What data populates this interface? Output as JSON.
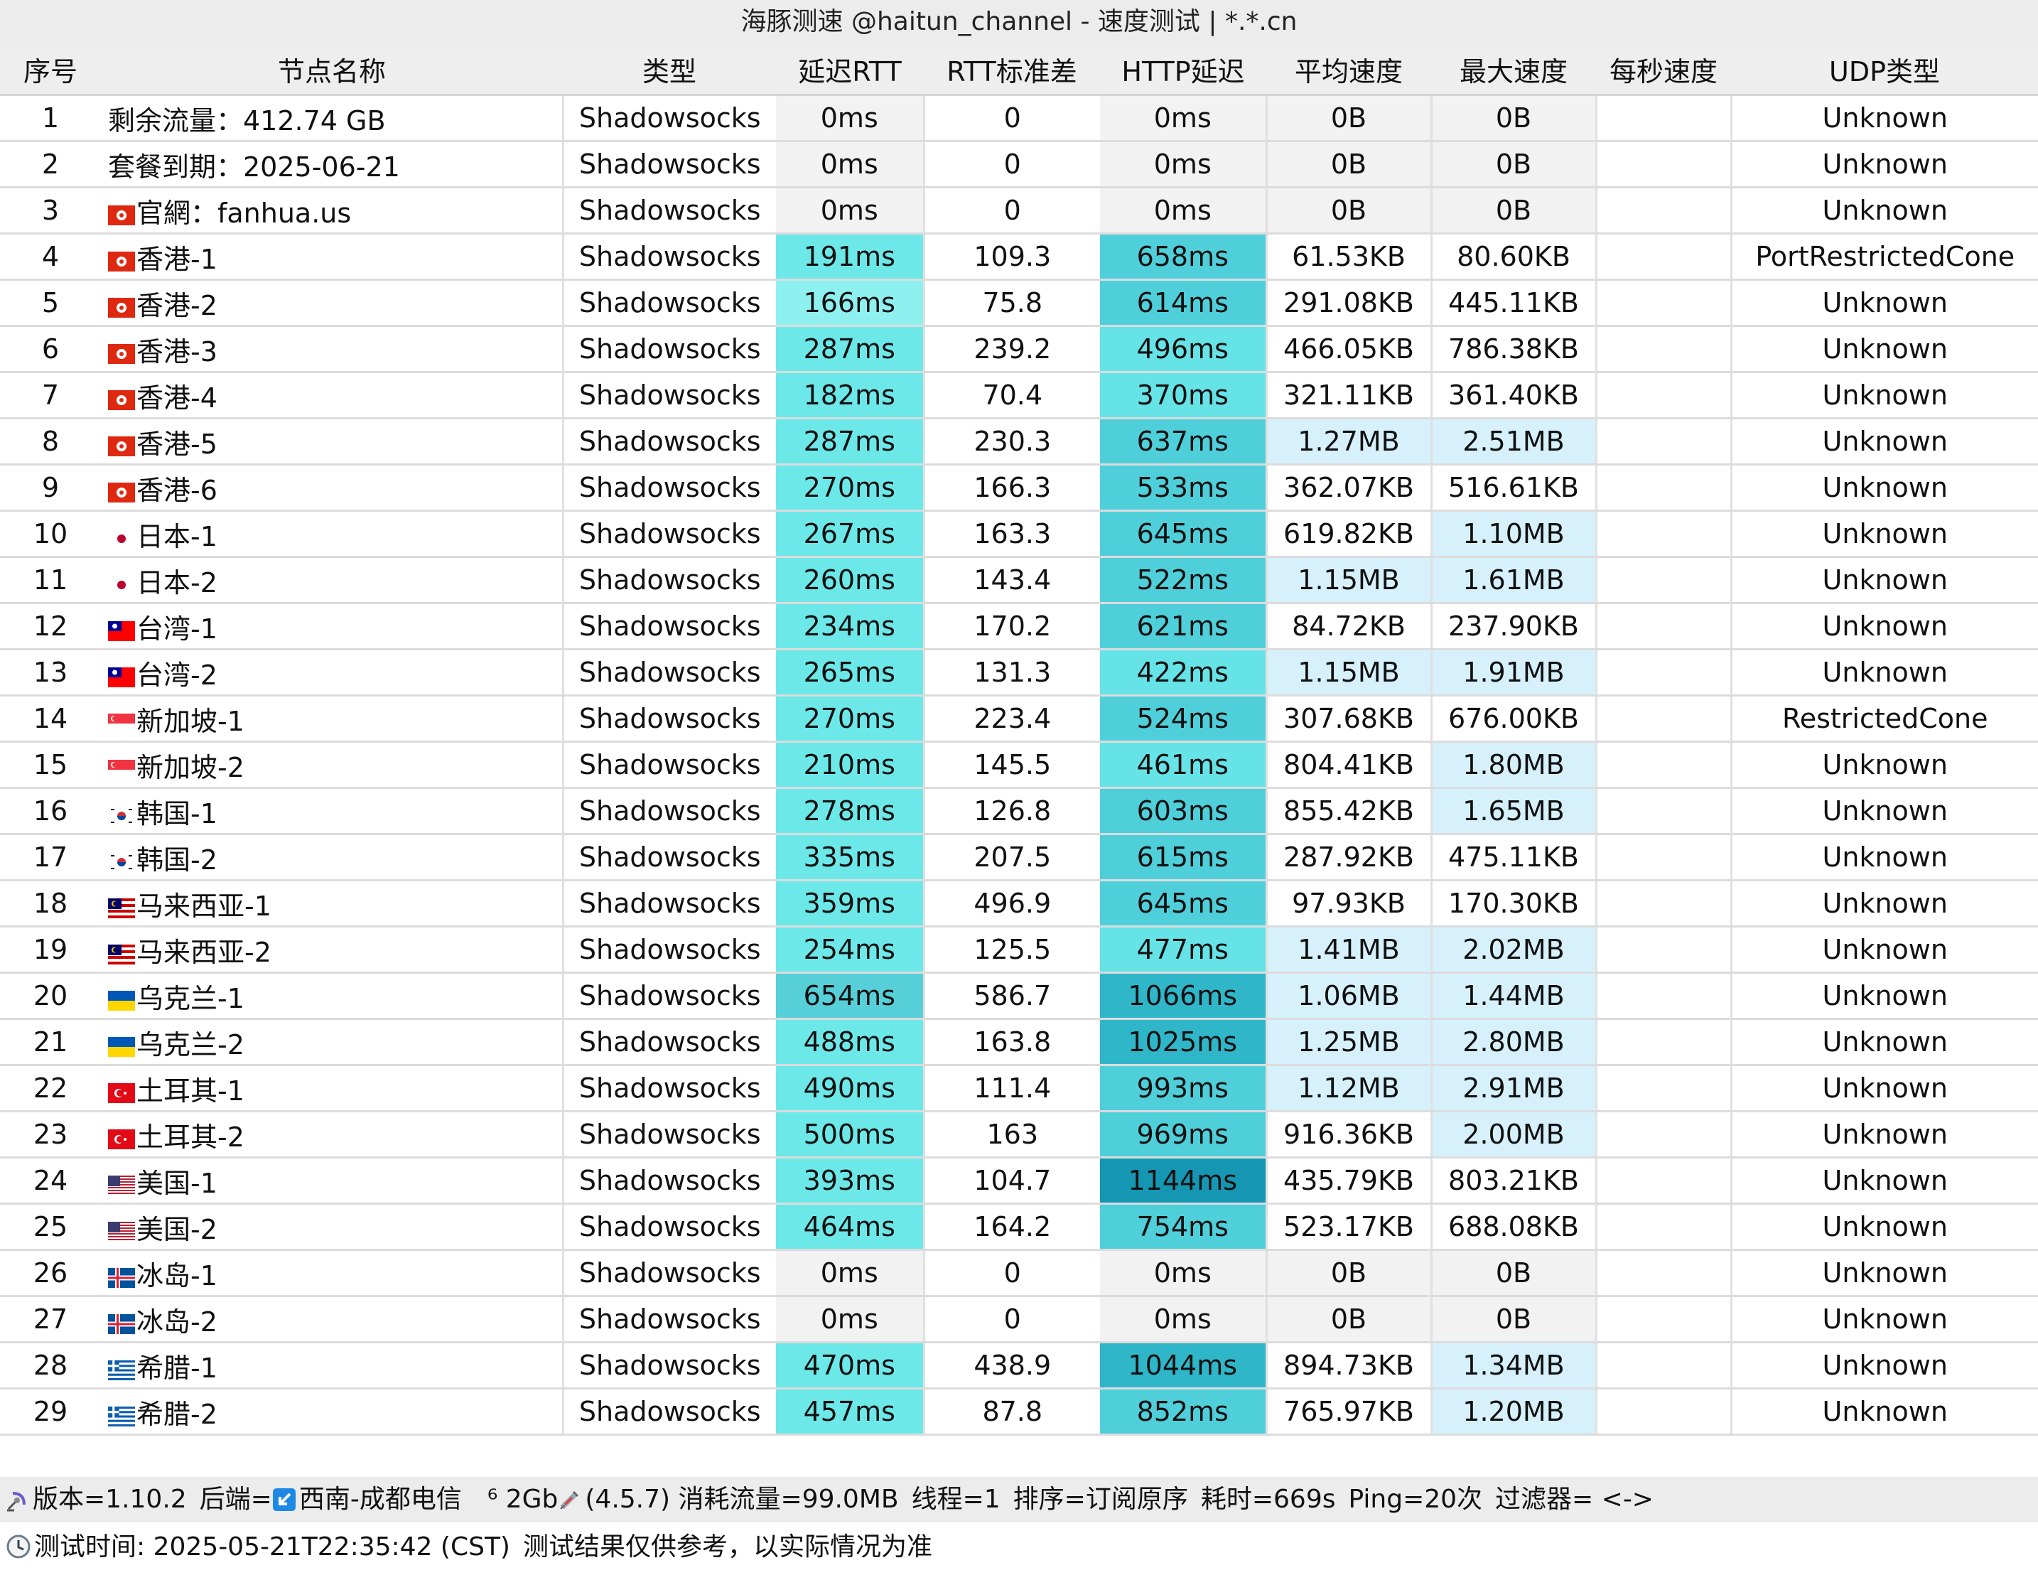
{
  "title": "海豚测速 @haitun_channel - 速度测试 | *.*.cn",
  "headers": [
    "序号",
    "节点名称",
    "类型",
    "延迟RTT",
    "RTT标准差",
    "HTTP延迟",
    "平均速度",
    "最大速度",
    "每秒速度",
    "UDP类型"
  ],
  "rows": [
    {
      "idx": "1",
      "flag": "",
      "name": "剩余流量：412.74 GB",
      "type": "Shadowsocks",
      "rtt": "0ms",
      "std": "0",
      "http": "0ms",
      "avg": "0B",
      "max": "0B",
      "per": "",
      "udp": "Unknown"
    },
    {
      "idx": "2",
      "flag": "",
      "name": "套餐到期：2025-06-21",
      "type": "Shadowsocks",
      "rtt": "0ms",
      "std": "0",
      "http": "0ms",
      "avg": "0B",
      "max": "0B",
      "per": "",
      "udp": "Unknown"
    },
    {
      "idx": "3",
      "flag": "hk",
      "name": "官網：fanhua.us",
      "type": "Shadowsocks",
      "rtt": "0ms",
      "std": "0",
      "http": "0ms",
      "avg": "0B",
      "max": "0B",
      "per": "",
      "udp": "Unknown"
    },
    {
      "idx": "4",
      "flag": "hk",
      "name": "香港-1",
      "type": "Shadowsocks",
      "rtt": "191ms",
      "std": "109.3",
      "http": "658ms",
      "avg": "61.53KB",
      "max": "80.60KB",
      "per": "",
      "udp": "PortRestrictedCone"
    },
    {
      "idx": "5",
      "flag": "hk",
      "name": "香港-2",
      "type": "Shadowsocks",
      "rtt": "166ms",
      "std": "75.8",
      "http": "614ms",
      "avg": "291.08KB",
      "max": "445.11KB",
      "per": "",
      "udp": "Unknown"
    },
    {
      "idx": "6",
      "flag": "hk",
      "name": "香港-3",
      "type": "Shadowsocks",
      "rtt": "287ms",
      "std": "239.2",
      "http": "496ms",
      "avg": "466.05KB",
      "max": "786.38KB",
      "per": "",
      "udp": "Unknown"
    },
    {
      "idx": "7",
      "flag": "hk",
      "name": "香港-4",
      "type": "Shadowsocks",
      "rtt": "182ms",
      "std": "70.4",
      "http": "370ms",
      "avg": "321.11KB",
      "max": "361.40KB",
      "per": "",
      "udp": "Unknown"
    },
    {
      "idx": "8",
      "flag": "hk",
      "name": "香港-5",
      "type": "Shadowsocks",
      "rtt": "287ms",
      "std": "230.3",
      "http": "637ms",
      "avg": "1.27MB",
      "max": "2.51MB",
      "per": "",
      "udp": "Unknown"
    },
    {
      "idx": "9",
      "flag": "hk",
      "name": "香港-6",
      "type": "Shadowsocks",
      "rtt": "270ms",
      "std": "166.3",
      "http": "533ms",
      "avg": "362.07KB",
      "max": "516.61KB",
      "per": "",
      "udp": "Unknown"
    },
    {
      "idx": "10",
      "flag": "jp",
      "name": "日本-1",
      "type": "Shadowsocks",
      "rtt": "267ms",
      "std": "163.3",
      "http": "645ms",
      "avg": "619.82KB",
      "max": "1.10MB",
      "per": "",
      "udp": "Unknown"
    },
    {
      "idx": "11",
      "flag": "jp",
      "name": "日本-2",
      "type": "Shadowsocks",
      "rtt": "260ms",
      "std": "143.4",
      "http": "522ms",
      "avg": "1.15MB",
      "max": "1.61MB",
      "per": "",
      "udp": "Unknown"
    },
    {
      "idx": "12",
      "flag": "tw",
      "name": "台湾-1",
      "type": "Shadowsocks",
      "rtt": "234ms",
      "std": "170.2",
      "http": "621ms",
      "avg": "84.72KB",
      "max": "237.90KB",
      "per": "",
      "udp": "Unknown"
    },
    {
      "idx": "13",
      "flag": "tw",
      "name": "台湾-2",
      "type": "Shadowsocks",
      "rtt": "265ms",
      "std": "131.3",
      "http": "422ms",
      "avg": "1.15MB",
      "max": "1.91MB",
      "per": "",
      "udp": "Unknown"
    },
    {
      "idx": "14",
      "flag": "sg",
      "name": "新加坡-1",
      "type": "Shadowsocks",
      "rtt": "270ms",
      "std": "223.4",
      "http": "524ms",
      "avg": "307.68KB",
      "max": "676.00KB",
      "per": "",
      "udp": "RestrictedCone"
    },
    {
      "idx": "15",
      "flag": "sg",
      "name": "新加坡-2",
      "type": "Shadowsocks",
      "rtt": "210ms",
      "std": "145.5",
      "http": "461ms",
      "avg": "804.41KB",
      "max": "1.80MB",
      "per": "",
      "udp": "Unknown"
    },
    {
      "idx": "16",
      "flag": "kr",
      "name": "韩国-1",
      "type": "Shadowsocks",
      "rtt": "278ms",
      "std": "126.8",
      "http": "603ms",
      "avg": "855.42KB",
      "max": "1.65MB",
      "per": "",
      "udp": "Unknown"
    },
    {
      "idx": "17",
      "flag": "kr",
      "name": "韩国-2",
      "type": "Shadowsocks",
      "rtt": "335ms",
      "std": "207.5",
      "http": "615ms",
      "avg": "287.92KB",
      "max": "475.11KB",
      "per": "",
      "udp": "Unknown"
    },
    {
      "idx": "18",
      "flag": "my",
      "name": "马来西亚-1",
      "type": "Shadowsocks",
      "rtt": "359ms",
      "std": "496.9",
      "http": "645ms",
      "avg": "97.93KB",
      "max": "170.30KB",
      "per": "",
      "udp": "Unknown"
    },
    {
      "idx": "19",
      "flag": "my",
      "name": "马来西亚-2",
      "type": "Shadowsocks",
      "rtt": "254ms",
      "std": "125.5",
      "http": "477ms",
      "avg": "1.41MB",
      "max": "2.02MB",
      "per": "",
      "udp": "Unknown"
    },
    {
      "idx": "20",
      "flag": "ua",
      "name": "乌克兰-1",
      "type": "Shadowsocks",
      "rtt": "654ms",
      "std": "586.7",
      "http": "1066ms",
      "avg": "1.06MB",
      "max": "1.44MB",
      "per": "",
      "udp": "Unknown"
    },
    {
      "idx": "21",
      "flag": "ua",
      "name": "乌克兰-2",
      "type": "Shadowsocks",
      "rtt": "488ms",
      "std": "163.8",
      "http": "1025ms",
      "avg": "1.25MB",
      "max": "2.80MB",
      "per": "",
      "udp": "Unknown"
    },
    {
      "idx": "22",
      "flag": "tr",
      "name": "土耳其-1",
      "type": "Shadowsocks",
      "rtt": "490ms",
      "std": "111.4",
      "http": "993ms",
      "avg": "1.12MB",
      "max": "2.91MB",
      "per": "",
      "udp": "Unknown"
    },
    {
      "idx": "23",
      "flag": "tr",
      "name": "土耳其-2",
      "type": "Shadowsocks",
      "rtt": "500ms",
      "std": "163",
      "http": "969ms",
      "avg": "916.36KB",
      "max": "2.00MB",
      "per": "",
      "udp": "Unknown"
    },
    {
      "idx": "24",
      "flag": "us",
      "name": "美国-1",
      "type": "Shadowsocks",
      "rtt": "393ms",
      "std": "104.7",
      "http": "1144ms",
      "avg": "435.79KB",
      "max": "803.21KB",
      "per": "",
      "udp": "Unknown"
    },
    {
      "idx": "25",
      "flag": "us",
      "name": "美国-2",
      "type": "Shadowsocks",
      "rtt": "464ms",
      "std": "164.2",
      "http": "754ms",
      "avg": "523.17KB",
      "max": "688.08KB",
      "per": "",
      "udp": "Unknown"
    },
    {
      "idx": "26",
      "flag": "is",
      "name": "冰岛-1",
      "type": "Shadowsocks",
      "rtt": "0ms",
      "std": "0",
      "http": "0ms",
      "avg": "0B",
      "max": "0B",
      "per": "",
      "udp": "Unknown"
    },
    {
      "idx": "27",
      "flag": "is",
      "name": "冰岛-2",
      "type": "Shadowsocks",
      "rtt": "0ms",
      "std": "0",
      "http": "0ms",
      "avg": "0B",
      "max": "0B",
      "per": "",
      "udp": "Unknown"
    },
    {
      "idx": "28",
      "flag": "gr",
      "name": "希腊-1",
      "type": "Shadowsocks",
      "rtt": "470ms",
      "std": "438.9",
      "http": "1044ms",
      "avg": "894.73KB",
      "max": "1.34MB",
      "per": "",
      "udp": "Unknown"
    },
    {
      "idx": "29",
      "flag": "gr",
      "name": "希腊-2",
      "type": "Shadowsocks",
      "rtt": "457ms",
      "std": "87.8",
      "http": "852ms",
      "avg": "765.97KB",
      "max": "1.20MB",
      "per": "",
      "udp": "Unknown"
    }
  ],
  "footer": {
    "version": "版本=1.10.2",
    "backend": "后端=",
    "backend_isp": "西南-成都电信",
    "bandwidth": "⁶ 2Gb",
    "core": "(4.5.7) 消耗流量=99.0MB",
    "threads": "线程=1",
    "sort": "排序=订阅原序",
    "elapsed": "耗时=669s",
    "ping": "Ping=20次",
    "filter": "过滤器= <->",
    "test_time": "测试时间: 2025-05-21T22:35:42 (CST)",
    "disclaimer": "测试结果仅供参考，以实际情况为准"
  },
  "colors": {
    "zero_cell": "#f2f2f2",
    "rtt_light": "#8ff0f0",
    "rtt_mid": "#6de8e9",
    "rtt_dark": "#56cfd9",
    "http_light": "#66e3e6",
    "http_mid": "#4fcfd9",
    "http_dark": "#2fb6c9",
    "http_darkest": "#1597b3",
    "speed_high": "#d6f1fc",
    "speed_mid": "#f2f2f2"
  },
  "icons": {
    "version_icon": "satellite-dish-icon",
    "backend_icon": "download-arrow-icon",
    "core_icon": "syringe-icon",
    "time_icon": "clock-icon"
  }
}
